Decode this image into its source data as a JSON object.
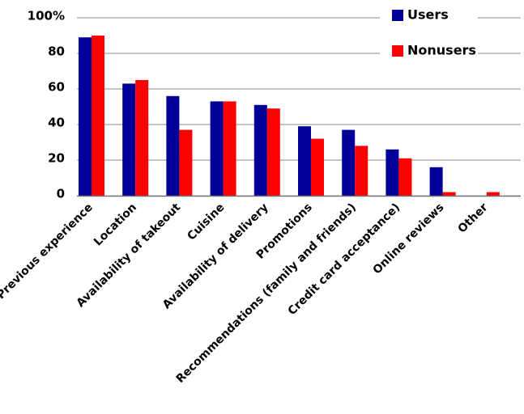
{
  "chart_data": {
    "type": "bar",
    "title": "",
    "xlabel": "",
    "ylabel": "",
    "ylim": [
      0,
      100
    ],
    "yticks": [
      {
        "value": 0,
        "label": "0"
      },
      {
        "value": 20,
        "label": "20"
      },
      {
        "value": 40,
        "label": "40"
      },
      {
        "value": 60,
        "label": "60"
      },
      {
        "value": 80,
        "label": "80"
      },
      {
        "value": 100,
        "label": "100%"
      }
    ],
    "grid": true,
    "legend_position": "top-right",
    "categories": [
      "Previous experience",
      "Location",
      "Availability of takeout",
      "Cuisine",
      "Availability of delivery",
      "Promotions",
      "Recommendations (family and friends)",
      "Credit card acceptance)",
      "Online reviews",
      "Other"
    ],
    "series": [
      {
        "name": "Users",
        "color": "#000099",
        "values": [
          89,
          63,
          56,
          53,
          51,
          39,
          37,
          26,
          16,
          0
        ]
      },
      {
        "name": "Nonusers",
        "color": "#ff0000",
        "values": [
          90,
          65,
          37,
          53,
          49,
          32,
          28,
          21,
          2,
          2
        ]
      }
    ]
  }
}
